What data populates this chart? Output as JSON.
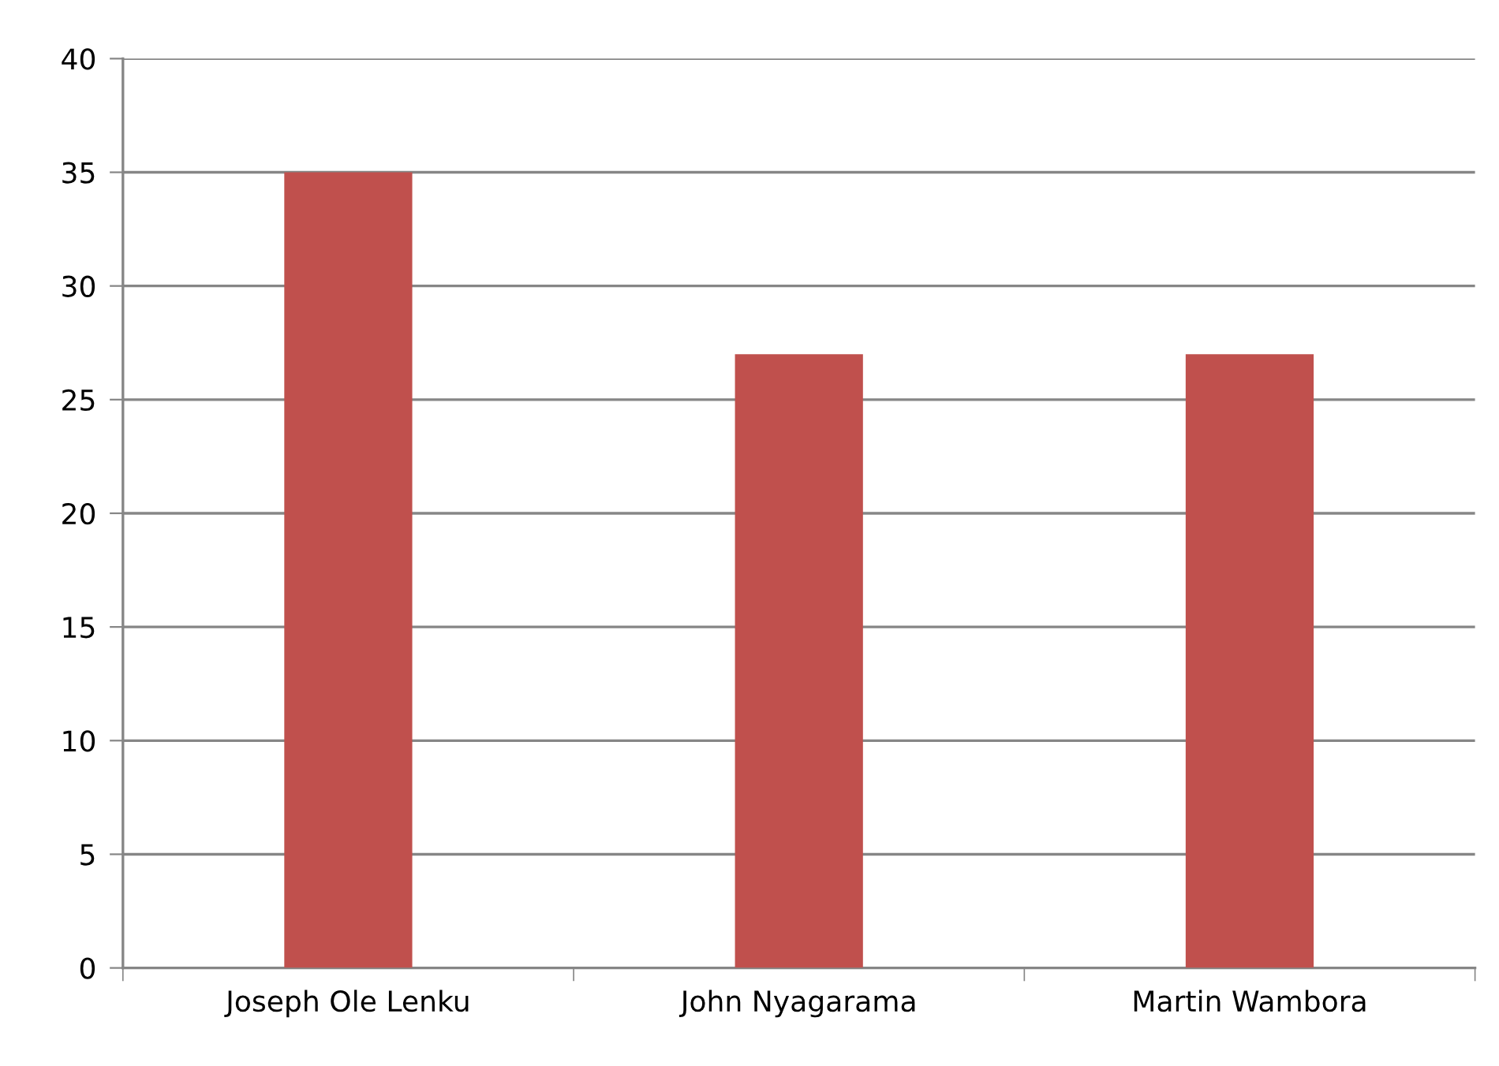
{
  "chart_data": {
    "type": "bar",
    "categories": [
      "Joseph Ole Lenku",
      "John Nyagarama",
      "Martin Wambora"
    ],
    "values": [
      35,
      27,
      27
    ],
    "color": "#c0504d",
    "ylim": [
      0,
      40
    ],
    "yticks": [
      0,
      5,
      10,
      15,
      20,
      25,
      30,
      35,
      40
    ],
    "grid": "y",
    "legend": false
  }
}
